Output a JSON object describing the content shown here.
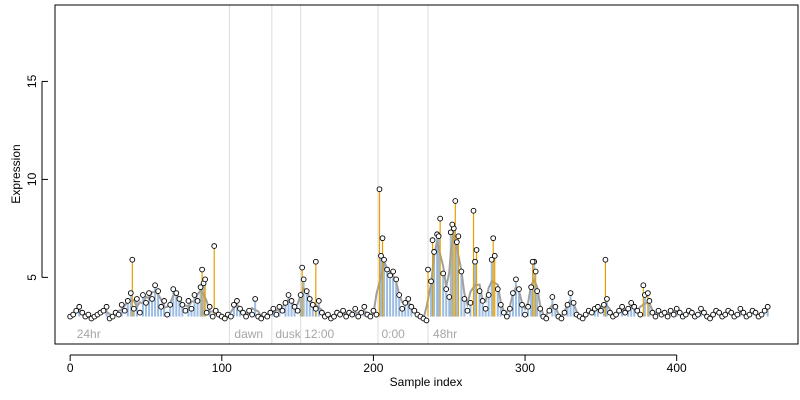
{
  "chart_data": {
    "type": "scatter",
    "title": "",
    "xlabel": "Sample index",
    "ylabel": "Expression",
    "xlim": [
      -10,
      480
    ],
    "ylim": [
      1.6,
      18.9
    ],
    "x_ticks": [
      0,
      100,
      200,
      300,
      400
    ],
    "y_ticks": [
      5,
      10,
      15
    ],
    "grid": false,
    "legend": "none",
    "colors": {
      "points_stroke": "#000000",
      "points_fill": "#ffffff",
      "highlight_lines": "#e69f00",
      "fit_lines": "#7da7d9",
      "smooth_line": "#a0a0a0",
      "region_lines": "#dcdcdc",
      "region_labels": "#a6a6a6"
    },
    "region_boundaries": [
      105,
      133,
      152,
      203,
      236
    ],
    "regions": [
      {
        "label": "24hr",
        "x": 3
      },
      {
        "label": "dawn",
        "x": 107
      },
      {
        "label": "dusk",
        "x": 134
      },
      {
        "label": "12:00",
        "x": 153
      },
      {
        "label": "0:00",
        "x": 204
      },
      {
        "label": "48hr",
        "x": 238
      }
    ],
    "peaks": [
      {
        "x": 41,
        "y": 5.9
      },
      {
        "x": 87,
        "y": 5.4
      },
      {
        "x": 89,
        "y": 4.9
      },
      {
        "x": 95,
        "y": 6.6
      },
      {
        "x": 153,
        "y": 5.5
      },
      {
        "x": 162,
        "y": 5.8
      },
      {
        "x": 204,
        "y": 9.5
      },
      {
        "x": 206,
        "y": 7.0
      },
      {
        "x": 236,
        "y": 5.4
      },
      {
        "x": 239,
        "y": 6.9
      },
      {
        "x": 244,
        "y": 8.0
      },
      {
        "x": 252,
        "y": 7.7
      },
      {
        "x": 254,
        "y": 8.9
      },
      {
        "x": 256,
        "y": 7.1
      },
      {
        "x": 266,
        "y": 8.4
      },
      {
        "x": 268,
        "y": 6.4
      },
      {
        "x": 279,
        "y": 7.0
      },
      {
        "x": 280,
        "y": 6.1
      },
      {
        "x": 305,
        "y": 5.8
      },
      {
        "x": 307,
        "y": 5.3
      },
      {
        "x": 353,
        "y": 5.9
      },
      {
        "x": 378,
        "y": 4.6
      },
      {
        "x": 381,
        "y": 4.2
      }
    ],
    "series": [
      {
        "values": [
          [
            0,
            3.0
          ],
          [
            2,
            3.1
          ],
          [
            4,
            3.3
          ],
          [
            6,
            3.5
          ],
          [
            8,
            3.2
          ],
          [
            10,
            3.0
          ],
          [
            12,
            3.1
          ],
          [
            14,
            2.9
          ],
          [
            16,
            3.0
          ],
          [
            18,
            3.1
          ],
          [
            20,
            3.2
          ],
          [
            22,
            3.3
          ],
          [
            24,
            3.5
          ],
          [
            26,
            2.9
          ],
          [
            28,
            3.0
          ],
          [
            30,
            3.2
          ],
          [
            32,
            3.1
          ],
          [
            34,
            3.6
          ],
          [
            36,
            3.3
          ],
          [
            38,
            3.8
          ],
          [
            40,
            4.2
          ],
          [
            42,
            3.4
          ],
          [
            44,
            3.9
          ],
          [
            46,
            3.2
          ],
          [
            48,
            4.1
          ],
          [
            50,
            3.7
          ],
          [
            52,
            4.2
          ],
          [
            54,
            3.9
          ],
          [
            56,
            4.6
          ],
          [
            58,
            4.3
          ],
          [
            60,
            3.5
          ],
          [
            62,
            3.8
          ],
          [
            64,
            3.1
          ],
          [
            66,
            3.6
          ],
          [
            68,
            4.4
          ],
          [
            70,
            4.2
          ],
          [
            72,
            3.9
          ],
          [
            74,
            3.6
          ],
          [
            76,
            3.3
          ],
          [
            78,
            3.8
          ],
          [
            80,
            3.4
          ],
          [
            82,
            4.1
          ],
          [
            84,
            3.8
          ],
          [
            86,
            4.5
          ],
          [
            88,
            4.7
          ],
          [
            90,
            3.2
          ],
          [
            92,
            3.5
          ],
          [
            94,
            3.0
          ],
          [
            96,
            3.3
          ],
          [
            98,
            3.1
          ],
          [
            100,
            3.0
          ],
          [
            102,
            2.9
          ],
          [
            104,
            3.1
          ],
          [
            106,
            3.0
          ],
          [
            108,
            3.6
          ],
          [
            110,
            3.8
          ],
          [
            112,
            3.4
          ],
          [
            114,
            3.2
          ],
          [
            116,
            3.0
          ],
          [
            118,
            3.3
          ],
          [
            120,
            3.1
          ],
          [
            122,
            3.9
          ],
          [
            124,
            3.0
          ],
          [
            126,
            2.9
          ],
          [
            128,
            3.1
          ],
          [
            130,
            3.0
          ],
          [
            132,
            3.2
          ],
          [
            134,
            3.4
          ],
          [
            136,
            3.1
          ],
          [
            138,
            3.5
          ],
          [
            140,
            3.3
          ],
          [
            142,
            3.7
          ],
          [
            144,
            4.1
          ],
          [
            146,
            3.8
          ],
          [
            148,
            3.5
          ],
          [
            150,
            3.3
          ],
          [
            152,
            4.1
          ],
          [
            154,
            4.9
          ],
          [
            156,
            4.3
          ],
          [
            158,
            3.9
          ],
          [
            160,
            3.6
          ],
          [
            162,
            3.4
          ],
          [
            164,
            3.8
          ],
          [
            166,
            3.2
          ],
          [
            168,
            3.0
          ],
          [
            170,
            3.1
          ],
          [
            172,
            2.9
          ],
          [
            174,
            3.0
          ],
          [
            176,
            3.2
          ],
          [
            178,
            3.1
          ],
          [
            180,
            3.3
          ],
          [
            182,
            3.0
          ],
          [
            184,
            3.2
          ],
          [
            186,
            3.1
          ],
          [
            188,
            3.4
          ],
          [
            190,
            3.0
          ],
          [
            192,
            3.2
          ],
          [
            194,
            3.5
          ],
          [
            196,
            3.1
          ],
          [
            198,
            3.0
          ],
          [
            200,
            3.3
          ],
          [
            202,
            3.1
          ],
          [
            205,
            6.1
          ],
          [
            207,
            5.9
          ],
          [
            209,
            5.4
          ],
          [
            211,
            5.1
          ],
          [
            213,
            5.3
          ],
          [
            215,
            4.9
          ],
          [
            217,
            4.1
          ],
          [
            219,
            3.4
          ],
          [
            221,
            3.7
          ],
          [
            223,
            3.9
          ],
          [
            225,
            3.5
          ],
          [
            227,
            3.3
          ],
          [
            229,
            3.1
          ],
          [
            231,
            3.0
          ],
          [
            233,
            2.9
          ],
          [
            235,
            2.8
          ],
          [
            238,
            4.8
          ],
          [
            240,
            6.3
          ],
          [
            242,
            7.2
          ],
          [
            243,
            7.1
          ],
          [
            246,
            5.2
          ],
          [
            248,
            4.4
          ],
          [
            250,
            4.0
          ],
          [
            251,
            7.3
          ],
          [
            253,
            7.5
          ],
          [
            255,
            6.8
          ],
          [
            258,
            5.3
          ],
          [
            260,
            3.9
          ],
          [
            262,
            3.3
          ],
          [
            264,
            3.7
          ],
          [
            267,
            5.8
          ],
          [
            270,
            4.3
          ],
          [
            272,
            3.8
          ],
          [
            274,
            3.4
          ],
          [
            276,
            4.1
          ],
          [
            278,
            5.9
          ],
          [
            282,
            4.4
          ],
          [
            284,
            3.6
          ],
          [
            286,
            3.2
          ],
          [
            288,
            3.0
          ],
          [
            290,
            3.4
          ],
          [
            292,
            4.2
          ],
          [
            294,
            4.9
          ],
          [
            296,
            4.4
          ],
          [
            298,
            3.6
          ],
          [
            300,
            3.1
          ],
          [
            302,
            3.5
          ],
          [
            304,
            4.5
          ],
          [
            306,
            5.8
          ],
          [
            308,
            4.3
          ],
          [
            310,
            3.4
          ],
          [
            312,
            3.0
          ],
          [
            314,
            2.9
          ],
          [
            316,
            3.3
          ],
          [
            318,
            4.0
          ],
          [
            320,
            3.5
          ],
          [
            322,
            3.0
          ],
          [
            324,
            2.9
          ],
          [
            326,
            3.2
          ],
          [
            328,
            3.6
          ],
          [
            330,
            4.2
          ],
          [
            332,
            3.7
          ],
          [
            334,
            3.1
          ],
          [
            336,
            3.0
          ],
          [
            338,
            2.9
          ],
          [
            340,
            3.1
          ],
          [
            342,
            3.3
          ],
          [
            344,
            3.2
          ],
          [
            346,
            3.4
          ],
          [
            348,
            3.5
          ],
          [
            350,
            3.3
          ],
          [
            352,
            3.6
          ],
          [
            354,
            3.9
          ],
          [
            356,
            3.2
          ],
          [
            358,
            3.0
          ],
          [
            360,
            3.1
          ],
          [
            362,
            3.3
          ],
          [
            364,
            3.5
          ],
          [
            366,
            3.2
          ],
          [
            368,
            3.4
          ],
          [
            370,
            3.7
          ],
          [
            372,
            3.5
          ],
          [
            374,
            3.3
          ],
          [
            376,
            3.1
          ],
          [
            379,
            4.1
          ],
          [
            382,
            3.8
          ],
          [
            384,
            3.2
          ],
          [
            386,
            3.0
          ],
          [
            388,
            3.3
          ],
          [
            390,
            3.1
          ],
          [
            392,
            3.2
          ],
          [
            394,
            3.0
          ],
          [
            396,
            3.3
          ],
          [
            398,
            3.1
          ],
          [
            400,
            3.4
          ],
          [
            402,
            3.2
          ],
          [
            404,
            3.0
          ],
          [
            406,
            3.1
          ],
          [
            408,
            3.3
          ],
          [
            410,
            3.2
          ],
          [
            412,
            3.0
          ],
          [
            414,
            3.1
          ],
          [
            416,
            3.4
          ],
          [
            418,
            3.2
          ],
          [
            420,
            3.0
          ],
          [
            422,
            2.9
          ],
          [
            424,
            3.1
          ],
          [
            426,
            3.3
          ],
          [
            428,
            3.2
          ],
          [
            430,
            3.0
          ],
          [
            432,
            3.1
          ],
          [
            434,
            3.3
          ],
          [
            436,
            3.2
          ],
          [
            438,
            3.0
          ],
          [
            440,
            3.1
          ],
          [
            442,
            3.4
          ],
          [
            444,
            3.2
          ],
          [
            446,
            3.0
          ],
          [
            448,
            3.1
          ],
          [
            450,
            3.3
          ],
          [
            452,
            3.2
          ],
          [
            454,
            3.0
          ],
          [
            456,
            3.1
          ],
          [
            458,
            3.3
          ],
          [
            460,
            3.5
          ]
        ]
      }
    ]
  }
}
